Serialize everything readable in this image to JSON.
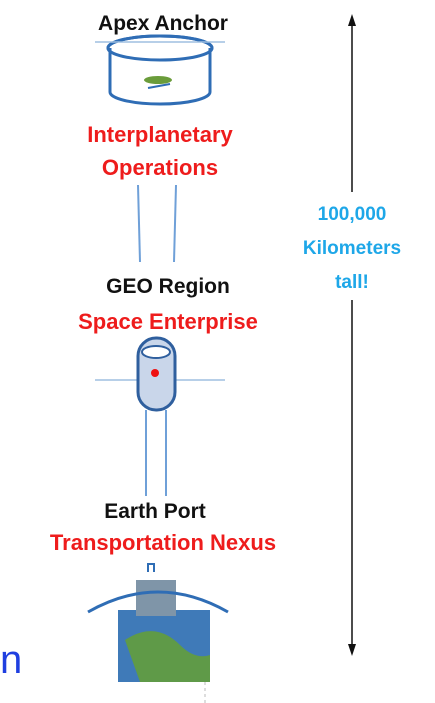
{
  "apex": {
    "title": "Apex Anchor",
    "role": [
      "Interplanetary",
      "Operations"
    ]
  },
  "geo": {
    "title": "GEO Region",
    "role": "Space Enterprise"
  },
  "earth": {
    "title": "Earth Port",
    "role": "Transportation Nexus"
  },
  "height_note": [
    "100,000",
    "Kilometers",
    "tall!"
  ],
  "cut_text": "n"
}
